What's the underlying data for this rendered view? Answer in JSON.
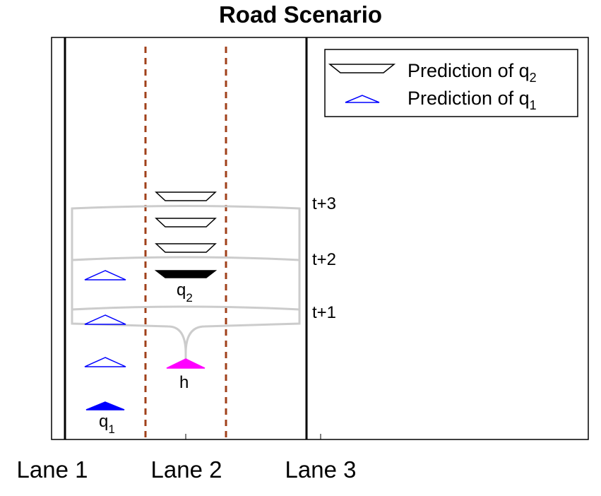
{
  "title": "Road Scenario",
  "lanes": [
    "Lane 1",
    "Lane 2",
    "Lane 3"
  ],
  "legend": {
    "q2": {
      "text": "Prediction of q",
      "sub": "2"
    },
    "q1": {
      "text": "Prediction of q",
      "sub": "1"
    }
  },
  "time_labels": [
    "t+3",
    "t+2",
    "t+1"
  ],
  "agents": {
    "q1": {
      "text": "q",
      "sub": "1"
    },
    "q2": {
      "text": "q",
      "sub": "2"
    },
    "h": {
      "text": "h"
    }
  },
  "colors": {
    "road_edge": "#000000",
    "lane_divider": "#a0401a",
    "q1_color": "#0000ff",
    "h_color": "#ff00ff",
    "tree_color": "#cccccc",
    "q2_color": "#000000"
  }
}
